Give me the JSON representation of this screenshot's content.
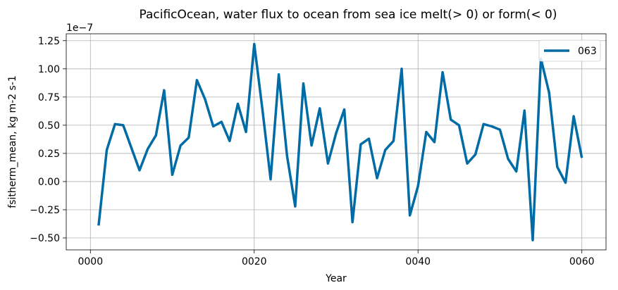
{
  "chart_data": {
    "type": "line",
    "title": "PacificOcean, water flux to ocean from sea ice melt(> 0) or form(< 0)",
    "xlabel": "Year",
    "ylabel": "fsitherm_mean, kg m-2 s-1",
    "y_scale_label": "1e−7",
    "xlim": [
      -2.95,
      62.95
    ],
    "ylim": [
      -0.606,
      1.311
    ],
    "x_ticks": [
      0,
      20,
      40,
      60
    ],
    "x_tick_labels": [
      "0000",
      "0020",
      "0040",
      "0060"
    ],
    "y_ticks": [
      -0.5,
      -0.25,
      0,
      0.25,
      0.5,
      0.75,
      1.0,
      1.25
    ],
    "y_tick_labels": [
      "−0.50",
      "−0.25",
      "0.00",
      "0.25",
      "0.50",
      "0.75",
      "1.00",
      "1.25"
    ],
    "grid": true,
    "legend_position": "top-right",
    "series": [
      {
        "name": "063",
        "color": "#006ba4",
        "x": [
          1,
          2,
          3,
          4,
          5,
          6,
          7,
          8,
          9,
          10,
          11,
          12,
          13,
          14,
          15,
          16,
          17,
          18,
          19,
          20,
          21,
          22,
          23,
          24,
          25,
          26,
          27,
          28,
          29,
          30,
          31,
          32,
          33,
          34,
          35,
          36,
          37,
          38,
          39,
          40,
          41,
          42,
          43,
          44,
          45,
          46,
          47,
          48,
          49,
          50,
          51,
          52,
          53,
          54,
          55,
          56,
          57,
          58,
          59,
          60
        ],
        "values": [
          -0.39,
          0.28,
          0.51,
          0.5,
          0.3,
          0.1,
          0.29,
          0.41,
          0.81,
          0.06,
          0.32,
          0.39,
          0.9,
          0.73,
          0.49,
          0.53,
          0.36,
          0.69,
          0.44,
          1.22,
          0.64,
          0.02,
          0.95,
          0.23,
          -0.22,
          0.87,
          0.32,
          0.65,
          0.16,
          0.43,
          0.64,
          -0.36,
          0.33,
          0.38,
          0.03,
          0.28,
          0.36,
          1.0,
          -0.3,
          -0.04,
          0.44,
          0.35,
          0.97,
          0.55,
          0.5,
          0.16,
          0.24,
          0.51,
          0.49,
          0.46,
          0.2,
          0.09,
          0.63,
          -0.52,
          1.09,
          0.79,
          0.13,
          -0.01,
          0.58,
          0.21
        ]
      }
    ]
  }
}
